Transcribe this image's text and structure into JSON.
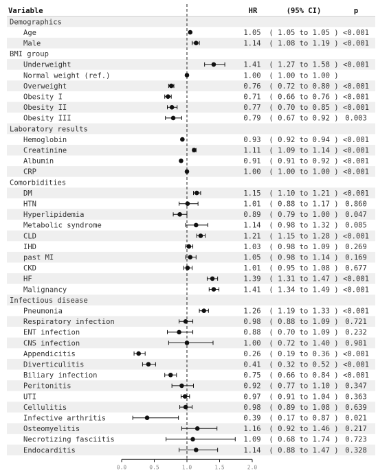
{
  "chart_data": {
    "type": "forest",
    "headers": {
      "variable": "Variable",
      "hr": "HR",
      "ci": "(95% CI)",
      "p": "p"
    },
    "reference_line": 1.0,
    "xlim": [
      0.0,
      2.0
    ],
    "xticks": [
      "0.0",
      "0.5",
      "1.0",
      "1.5",
      "2.0"
    ],
    "rows": [
      {
        "kind": "group",
        "label": "Demographics"
      },
      {
        "kind": "item",
        "label": "Age",
        "hr": 1.05,
        "lo": 1.05,
        "hi": 1.05,
        "hr_text": "1.05",
        "ci_text": "( 1.05 to 1.05 )",
        "p": "<0.001"
      },
      {
        "kind": "item",
        "label": "Male",
        "hr": 1.14,
        "lo": 1.08,
        "hi": 1.19,
        "hr_text": "1.14",
        "ci_text": "( 1.08 to 1.19 )",
        "p": "<0.001"
      },
      {
        "kind": "group",
        "label": "BMI group"
      },
      {
        "kind": "item",
        "label": "Underweight",
        "hr": 1.41,
        "lo": 1.27,
        "hi": 1.58,
        "hr_text": "1.41",
        "ci_text": "( 1.27 to 1.58 )",
        "p": "<0.001"
      },
      {
        "kind": "item",
        "label": "Normal weight (ref.)",
        "hr": 1.0,
        "lo": 1.0,
        "hi": 1.0,
        "hr_text": "1.00",
        "ci_text": "( 1.00 to 1.00 )",
        "p": ""
      },
      {
        "kind": "item",
        "label": "Overweight",
        "hr": 0.76,
        "lo": 0.72,
        "hi": 0.8,
        "hr_text": "0.76",
        "ci_text": "( 0.72 to 0.80 )",
        "p": "<0.001"
      },
      {
        "kind": "item",
        "label": "Obesity I",
        "hr": 0.71,
        "lo": 0.66,
        "hi": 0.76,
        "hr_text": "0.71",
        "ci_text": "( 0.66 to 0.76 )",
        "p": "<0.001"
      },
      {
        "kind": "item",
        "label": "Obesity II",
        "hr": 0.77,
        "lo": 0.7,
        "hi": 0.85,
        "hr_text": "0.77",
        "ci_text": "( 0.70 to 0.85 )",
        "p": "<0.001"
      },
      {
        "kind": "item",
        "label": "Obesity III",
        "hr": 0.79,
        "lo": 0.67,
        "hi": 0.92,
        "hr_text": "0.79",
        "ci_text": "( 0.67 to 0.92 )",
        "p": "0.003"
      },
      {
        "kind": "group",
        "label": "Laboratory results"
      },
      {
        "kind": "item",
        "label": "Hemoglobin",
        "hr": 0.93,
        "lo": 0.92,
        "hi": 0.94,
        "hr_text": "0.93",
        "ci_text": "( 0.92 to 0.94 )",
        "p": "<0.001"
      },
      {
        "kind": "item",
        "label": "Creatinine",
        "hr": 1.11,
        "lo": 1.09,
        "hi": 1.14,
        "hr_text": "1.11",
        "ci_text": "( 1.09 to 1.14 )",
        "p": "<0.001"
      },
      {
        "kind": "item",
        "label": "Albumin",
        "hr": 0.91,
        "lo": 0.91,
        "hi": 0.92,
        "hr_text": "0.91",
        "ci_text": "( 0.91 to 0.92 )",
        "p": "<0.001"
      },
      {
        "kind": "item",
        "label": "CRP",
        "hr": 1.0,
        "lo": 1.0,
        "hi": 1.0,
        "hr_text": "1.00",
        "ci_text": "( 1.00 to 1.00 )",
        "p": "<0.001"
      },
      {
        "kind": "group",
        "label": "Comorbidities"
      },
      {
        "kind": "item",
        "label": "DM",
        "hr": 1.15,
        "lo": 1.1,
        "hi": 1.21,
        "hr_text": "1.15",
        "ci_text": "( 1.10 to 1.21 )",
        "p": "<0.001"
      },
      {
        "kind": "item",
        "label": "HTN",
        "hr": 1.01,
        "lo": 0.88,
        "hi": 1.17,
        "hr_text": "1.01",
        "ci_text": "( 0.88 to 1.17 )",
        "p": "0.860"
      },
      {
        "kind": "item",
        "label": "Hyperlipidemia",
        "hr": 0.89,
        "lo": 0.79,
        "hi": 1.0,
        "hr_text": "0.89",
        "ci_text": "( 0.79 to 1.00 )",
        "p": "0.047"
      },
      {
        "kind": "item",
        "label": "Metabolic syndrome",
        "hr": 1.14,
        "lo": 0.98,
        "hi": 1.32,
        "hr_text": "1.14",
        "ci_text": "( 0.98 to 1.32 )",
        "p": "0.085"
      },
      {
        "kind": "item",
        "label": "CLD",
        "hr": 1.21,
        "lo": 1.15,
        "hi": 1.28,
        "hr_text": "1.21",
        "ci_text": "( 1.15 to 1.28 )",
        "p": "<0.001"
      },
      {
        "kind": "item",
        "label": "IHD",
        "hr": 1.03,
        "lo": 0.98,
        "hi": 1.09,
        "hr_text": "1.03",
        "ci_text": "( 0.98 to 1.09 )",
        "p": "0.269"
      },
      {
        "kind": "item",
        "label": "past MI",
        "hr": 1.05,
        "lo": 0.98,
        "hi": 1.14,
        "hr_text": "1.05",
        "ci_text": "( 0.98 to 1.14 )",
        "p": "0.169"
      },
      {
        "kind": "item",
        "label": "CKD",
        "hr": 1.01,
        "lo": 0.95,
        "hi": 1.08,
        "hr_text": "1.01",
        "ci_text": "( 0.95 to 1.08 )",
        "p": "0.677"
      },
      {
        "kind": "item",
        "label": "HF",
        "hr": 1.39,
        "lo": 1.31,
        "hi": 1.47,
        "hr_text": "1.39",
        "ci_text": "( 1.31 to 1.47 )",
        "p": "<0.001"
      },
      {
        "kind": "item",
        "label": "Malignancy",
        "hr": 1.41,
        "lo": 1.34,
        "hi": 1.49,
        "hr_text": "1.41",
        "ci_text": "( 1.34 to 1.49 )",
        "p": "<0.001"
      },
      {
        "kind": "group",
        "label": "Infectious disease"
      },
      {
        "kind": "item",
        "label": "Pneumonia",
        "hr": 1.26,
        "lo": 1.19,
        "hi": 1.33,
        "hr_text": "1.26",
        "ci_text": "( 1.19 to 1.33 )",
        "p": "<0.001"
      },
      {
        "kind": "item",
        "label": "Respiratory infection",
        "hr": 0.98,
        "lo": 0.88,
        "hi": 1.09,
        "hr_text": "0.98",
        "ci_text": "( 0.88 to 1.09 )",
        "p": "0.721"
      },
      {
        "kind": "item",
        "label": "ENT infection",
        "hr": 0.88,
        "lo": 0.7,
        "hi": 1.09,
        "hr_text": "0.88",
        "ci_text": "( 0.70 to 1.09 )",
        "p": "0.232"
      },
      {
        "kind": "item",
        "label": "CNS infection",
        "hr": 1.0,
        "lo": 0.72,
        "hi": 1.4,
        "hr_text": "1.00",
        "ci_text": "( 0.72 to 1.40 )",
        "p": "0.981"
      },
      {
        "kind": "item",
        "label": "Appendicitis",
        "hr": 0.26,
        "lo": 0.19,
        "hi": 0.36,
        "hr_text": "0.26",
        "ci_text": "( 0.19 to 0.36 )",
        "p": "<0.001"
      },
      {
        "kind": "item",
        "label": "Diverticulitis",
        "hr": 0.41,
        "lo": 0.32,
        "hi": 0.52,
        "hr_text": "0.41",
        "ci_text": "( 0.32 to 0.52 )",
        "p": "<0.001"
      },
      {
        "kind": "item",
        "label": "Biliary infection",
        "hr": 0.75,
        "lo": 0.66,
        "hi": 0.84,
        "hr_text": "0.75",
        "ci_text": "( 0.66 to 0.84 )",
        "p": "<0.001"
      },
      {
        "kind": "item",
        "label": "Peritonitis",
        "hr": 0.92,
        "lo": 0.77,
        "hi": 1.1,
        "hr_text": "0.92",
        "ci_text": "( 0.77 to 1.10 )",
        "p": "0.347"
      },
      {
        "kind": "item",
        "label": "UTI",
        "hr": 0.97,
        "lo": 0.91,
        "hi": 1.04,
        "hr_text": "0.97",
        "ci_text": "( 0.91 to 1.04 )",
        "p": "0.363"
      },
      {
        "kind": "item",
        "label": "Cellulitis",
        "hr": 0.98,
        "lo": 0.89,
        "hi": 1.08,
        "hr_text": "0.98",
        "ci_text": "( 0.89 to 1.08 )",
        "p": "0.639"
      },
      {
        "kind": "item",
        "label": "Infective arthritis",
        "hr": 0.39,
        "lo": 0.17,
        "hi": 0.87,
        "hr_text": "0.39",
        "ci_text": "( 0.17 to 0.87 )",
        "p": "0.021"
      },
      {
        "kind": "item",
        "label": "Osteomyelitis",
        "hr": 1.16,
        "lo": 0.92,
        "hi": 1.46,
        "hr_text": "1.16",
        "ci_text": "( 0.92 to 1.46 )",
        "p": "0.217"
      },
      {
        "kind": "item",
        "label": "Necrotizing fasciitis",
        "hr": 1.09,
        "lo": 0.68,
        "hi": 1.74,
        "hr_text": "1.09",
        "ci_text": "( 0.68 to 1.74 )",
        "p": "0.723"
      },
      {
        "kind": "item",
        "label": "Endocarditis",
        "hr": 1.14,
        "lo": 0.88,
        "hi": 1.47,
        "hr_text": "1.14",
        "ci_text": "( 0.88 to 1.47 )",
        "p": "0.328"
      }
    ]
  }
}
